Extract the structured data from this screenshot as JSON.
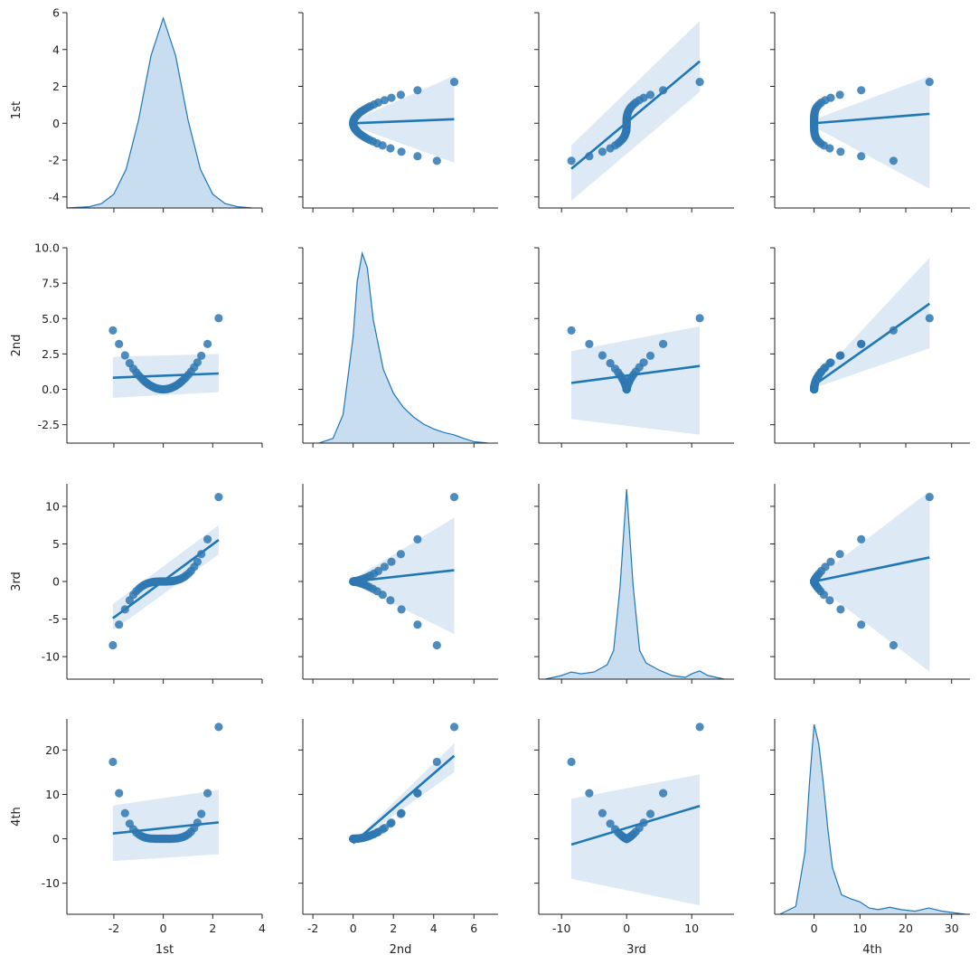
{
  "chart_data": {
    "type": "pairplot",
    "variables": [
      "1st",
      "2nd",
      "3rd",
      "4th"
    ],
    "diag_kind": "kde",
    "kind": "reg",
    "colors": {
      "series": "#1f77b4",
      "band": "#c6dbef",
      "point": "#2f78b2"
    },
    "axis_ranges": {
      "1st": [
        -3.9,
        4.0
      ],
      "2nd": [
        -2.5,
        7.2
      ],
      "3rd": [
        -13.5,
        16.5
      ],
      "4th": [
        -8.6,
        34.0
      ]
    },
    "y_ranges": {
      "1st": [
        -4.6,
        6.0
      ],
      "2nd": [
        -3.8,
        10.0
      ],
      "3rd": [
        -13.0,
        13.0
      ],
      "4th": [
        -17.0,
        27.0
      ]
    },
    "ticks": {
      "1st": [
        "-2",
        "0",
        "2",
        "4"
      ],
      "1st_y": [
        "-4",
        "-2",
        "0",
        "2",
        "4",
        "6"
      ],
      "2nd": [
        "-2",
        "0",
        "2",
        "4",
        "6"
      ],
      "2nd_y": [
        "-2.5",
        "0.0",
        "2.5",
        "5.0",
        "7.5",
        "10.0"
      ],
      "3rd": [
        "-10",
        "0",
        "10"
      ],
      "3rd_y": [
        "-10",
        "-5",
        "0",
        "5",
        "10"
      ],
      "4th": [
        "0",
        "10",
        "20",
        "30"
      ],
      "4th_y": [
        "-10",
        "0",
        "10",
        "20"
      ]
    },
    "points": {
      "1st": [
        -2.04,
        -1.79,
        -1.55,
        -1.36,
        -1.21,
        -1.09,
        -0.99,
        -0.9,
        -0.82,
        -0.75,
        -0.68,
        -0.62,
        -0.56,
        -0.5,
        -0.45,
        -0.4,
        -0.35,
        -0.3,
        -0.25,
        -0.21,
        -0.16,
        -0.12,
        -0.08,
        -0.03,
        0.01,
        0.05,
        0.09,
        0.13,
        0.18,
        0.22,
        0.27,
        0.31,
        0.36,
        0.41,
        0.46,
        0.51,
        0.57,
        0.63,
        0.69,
        0.76,
        0.84,
        0.92,
        1.02,
        1.12,
        1.25,
        1.38,
        1.54,
        1.79,
        2.24
      ],
      "2nd": [
        4.16,
        3.2,
        2.4,
        1.85,
        1.46,
        1.19,
        0.98,
        0.81,
        0.67,
        0.56,
        0.46,
        0.38,
        0.31,
        0.25,
        0.2,
        0.16,
        0.12,
        0.09,
        0.06,
        0.04,
        0.03,
        0.01,
        0.01,
        0.0,
        0.0,
        0.0,
        0.01,
        0.02,
        0.03,
        0.05,
        0.07,
        0.1,
        0.13,
        0.17,
        0.21,
        0.26,
        0.32,
        0.4,
        0.48,
        0.58,
        0.71,
        0.85,
        1.04,
        1.25,
        1.56,
        1.9,
        2.37,
        3.2,
        5.02
      ],
      "3rd": [
        -8.49,
        -5.74,
        -3.72,
        -2.52,
        -1.77,
        -1.3,
        -0.97,
        -0.73,
        -0.55,
        -0.42,
        -0.31,
        -0.24,
        -0.18,
        -0.13,
        -0.09,
        -0.06,
        -0.04,
        -0.03,
        -0.02,
        -0.01,
        0.0,
        0.0,
        0.0,
        0.0,
        0.0,
        0.0,
        0.0,
        0.0,
        0.01,
        0.01,
        0.02,
        0.03,
        0.05,
        0.07,
        0.1,
        0.13,
        0.19,
        0.25,
        0.33,
        0.44,
        0.59,
        0.78,
        1.06,
        1.4,
        1.95,
        2.63,
        3.65,
        5.61,
        11.24
      ],
      "4th": [
        17.32,
        10.27,
        5.77,
        3.42,
        2.14,
        1.41,
        0.96,
        0.66,
        0.45,
        0.32,
        0.21,
        0.15,
        0.1,
        0.06,
        0.04,
        0.03,
        0.02,
        0.01,
        0.0,
        0.0,
        0.0,
        0.0,
        0.0,
        0.0,
        0.0,
        0.0,
        0.0,
        0.0,
        0.0,
        0.0,
        0.01,
        0.01,
        0.02,
        0.03,
        0.04,
        0.07,
        0.11,
        0.16,
        0.23,
        0.33,
        0.5,
        0.72,
        1.08,
        1.57,
        2.44,
        3.63,
        5.62,
        10.27,
        25.18
      ]
    },
    "regressions": {
      "1st~2nd": {
        "x_range": [
          0.0,
          5.02
        ],
        "y": [
          0.0,
          0.22
        ],
        "band_lo": [
          -0.15,
          -2.14
        ],
        "band_hi": [
          0.15,
          2.58
        ]
      },
      "1st~3rd": {
        "x_range": [
          -8.49,
          11.24
        ],
        "y": [
          -2.47,
          3.36
        ],
        "band_lo": [
          -4.2,
          1.7
        ],
        "band_hi": [
          -1.2,
          5.56
        ]
      },
      "1st~4th": {
        "x_range": [
          0.0,
          25.18
        ],
        "y": [
          0.0,
          0.51
        ],
        "band_lo": [
          -0.2,
          -3.55
        ],
        "band_hi": [
          0.2,
          2.55
        ]
      },
      "2nd~1st": {
        "x_range": [
          -2.04,
          2.24
        ],
        "y": [
          0.82,
          1.12
        ],
        "band_lo": [
          -0.6,
          -0.2
        ],
        "band_hi": [
          2.3,
          2.5
        ]
      },
      "2nd~3rd": {
        "x_range": [
          -8.49,
          11.24
        ],
        "y": [
          0.45,
          1.65
        ],
        "band_lo": [
          -2.1,
          -3.2
        ],
        "band_hi": [
          2.7,
          4.45
        ]
      },
      "2nd~4th": {
        "x_range": [
          0.0,
          25.18
        ],
        "y": [
          0.3,
          6.05
        ],
        "band_lo": [
          0.1,
          2.9
        ],
        "band_hi": [
          0.55,
          9.3
        ]
      },
      "3rd~1st": {
        "x_range": [
          -2.04,
          2.24
        ],
        "y": [
          -4.9,
          5.53
        ],
        "band_lo": [
          -6.5,
          3.6
        ],
        "band_hi": [
          -3.0,
          7.5
        ]
      },
      "3rd~2nd": {
        "x_range": [
          0.0,
          5.02
        ],
        "y": [
          0.0,
          1.5
        ],
        "band_lo": [
          -0.3,
          -7.0
        ],
        "band_hi": [
          0.3,
          8.5
        ]
      },
      "3rd~4th": {
        "x_range": [
          0.0,
          25.18
        ],
        "y": [
          0.0,
          3.2
        ],
        "band_lo": [
          -0.3,
          -12.0
        ],
        "band_hi": [
          0.3,
          12.0
        ]
      },
      "4th~1st": {
        "x_range": [
          -2.04,
          2.24
        ],
        "y": [
          1.2,
          3.7
        ],
        "band_lo": [
          -5.0,
          -3.5
        ],
        "band_hi": [
          7.5,
          11.0
        ]
      },
      "4th~2nd": {
        "x_range": [
          0.0,
          5.02
        ],
        "y": [
          -1.0,
          18.7
        ],
        "band_lo": [
          -1.3,
          15.0
        ],
        "band_hi": [
          -0.7,
          21.5
        ]
      },
      "4th~3rd": {
        "x_range": [
          -8.49,
          11.24
        ],
        "y": [
          -1.3,
          7.4
        ],
        "band_lo": [
          -9.0,
          -15.0
        ],
        "band_hi": [
          9.0,
          14.5
        ]
      }
    },
    "kde": {
      "1st": {
        "x": [
          -3.9,
          -3.0,
          -2.5,
          -2.0,
          -1.5,
          -1.0,
          -0.5,
          0.0,
          0.5,
          1.0,
          1.5,
          2.0,
          2.5,
          3.0,
          3.6
        ],
        "y": [
          0.0,
          0.02,
          0.07,
          0.22,
          0.62,
          1.4,
          2.42,
          3.02,
          2.42,
          1.4,
          0.62,
          0.22,
          0.07,
          0.02,
          0.0
        ]
      },
      "2nd": {
        "x": [
          -1.7,
          -1.0,
          -0.5,
          0.0,
          0.2,
          0.45,
          0.7,
          1.0,
          1.5,
          2.0,
          2.5,
          3.0,
          3.5,
          4.0,
          4.5,
          5.0,
          5.5,
          6.0,
          6.7
        ],
        "y": [
          0.0,
          0.02,
          0.12,
          0.45,
          0.68,
          0.8,
          0.74,
          0.52,
          0.31,
          0.21,
          0.15,
          0.11,
          0.08,
          0.06,
          0.045,
          0.035,
          0.02,
          0.006,
          0.0
        ]
      },
      "3rd": {
        "x": [
          -12.5,
          -10.0,
          -8.5,
          -7.0,
          -5.0,
          -3.0,
          -2.0,
          -1.0,
          0.0,
          1.0,
          2.0,
          3.0,
          5.0,
          7.0,
          9.0,
          10.0,
          11.2,
          12.5,
          15.0
        ],
        "y": [
          0.0,
          0.01,
          0.02,
          0.015,
          0.02,
          0.04,
          0.08,
          0.26,
          0.53,
          0.26,
          0.08,
          0.045,
          0.025,
          0.01,
          0.005,
          0.015,
          0.023,
          0.01,
          0.0
        ]
      },
      "4th": {
        "x": [
          -7.5,
          -4.0,
          -2.0,
          -1.0,
          0.0,
          1.0,
          2.0,
          3.0,
          4.0,
          6.0,
          8.0,
          10.0,
          12.0,
          14.0,
          16.5,
          19.0,
          22.0,
          25.0,
          28.0,
          33.0
        ],
        "y": [
          0.0,
          0.01,
          0.08,
          0.17,
          0.245,
          0.22,
          0.17,
          0.11,
          0.06,
          0.025,
          0.02,
          0.016,
          0.008,
          0.006,
          0.009,
          0.006,
          0.004,
          0.008,
          0.004,
          0.0
        ]
      }
    },
    "xlabel_bottom": [
      "1st",
      "2nd",
      "3rd",
      "4th"
    ],
    "ylabel_left": [
      "1st",
      "2nd",
      "3rd",
      "4th"
    ],
    "grid": false,
    "legend": "none"
  }
}
